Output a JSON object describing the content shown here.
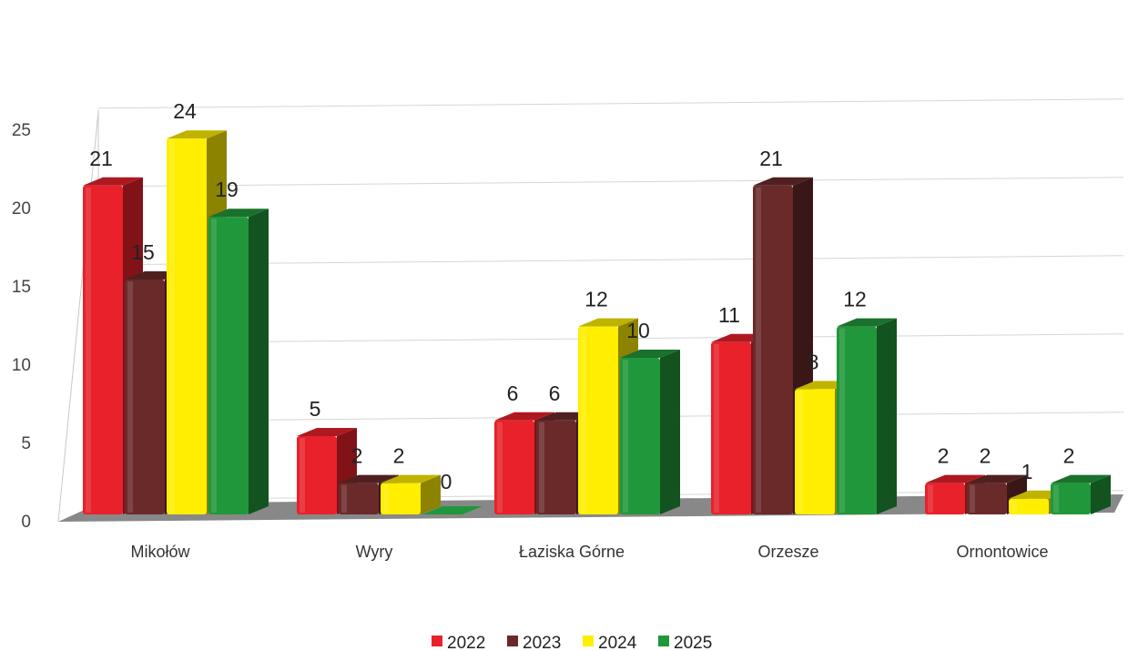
{
  "chart_data": {
    "type": "bar",
    "title": "",
    "xlabel": "",
    "ylabel": "",
    "categories": [
      "Mikołów",
      "Wyry",
      "Łaziska Górne",
      "Orzesze",
      "Ornontowice"
    ],
    "series": [
      {
        "name": "2022",
        "values": [
          21,
          5,
          6,
          11,
          2
        ],
        "color": "#e8212b"
      },
      {
        "name": "2023",
        "values": [
          15,
          2,
          6,
          21,
          2
        ],
        "color": "#6a2a2a"
      },
      {
        "name": "2024",
        "values": [
          24,
          2,
          12,
          8,
          1
        ],
        "color": "#ffee00"
      },
      {
        "name": "2025",
        "values": [
          19,
          0,
          10,
          12,
          2
        ],
        "color": "#21973b"
      }
    ],
    "ylim": [
      0,
      25
    ],
    "yticks": [
      0,
      5,
      10,
      15,
      20,
      25
    ],
    "grid": true,
    "legend_position": "bottom",
    "style": "3d-clustered-column",
    "floor_color": "#888888"
  }
}
